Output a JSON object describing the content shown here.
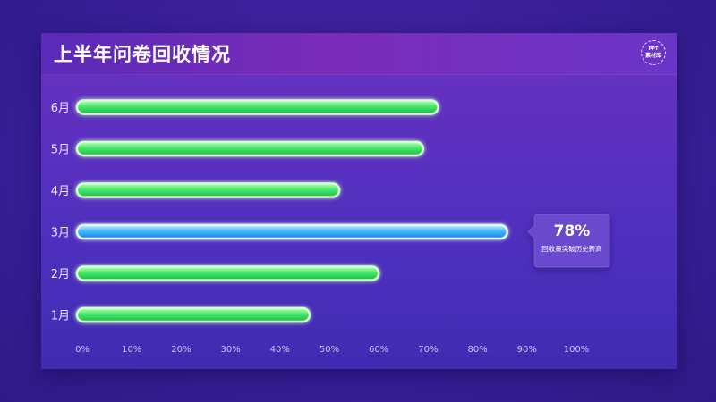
{
  "header": {
    "title": "上半年问卷回收情况",
    "logo_line1": "PPT",
    "logo_line2": "素材库"
  },
  "callout": {
    "value": "78%",
    "caption": "回收量突破历史新高"
  },
  "colors": {
    "bar_green": "#3ee06a",
    "bar_blue": "#3fb6ff",
    "label": "#e8e4ff"
  },
  "chart_data": {
    "type": "bar",
    "orientation": "horizontal",
    "title": "上半年问卷回收情况",
    "categories": [
      "6月",
      "5月",
      "4月",
      "3月",
      "2月",
      "1月"
    ],
    "values": [
      72,
      69,
      52,
      86,
      60,
      46
    ],
    "highlight": "3月",
    "xlim": [
      0,
      100
    ],
    "xticks": [
      "0%",
      "10%",
      "20%",
      "30%",
      "40%",
      "50%",
      "60%",
      "70%",
      "80%",
      "90%",
      "100%"
    ],
    "grid": false,
    "legend": "none"
  }
}
